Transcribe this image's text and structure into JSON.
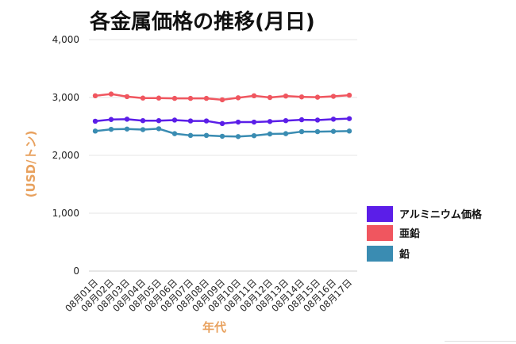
{
  "colors": {
    "aluminum": "#5b1ee8",
    "zinc": "#f0565f",
    "lead": "#3a8cb2",
    "axis_label": "#e8a15e"
  },
  "chart_data": {
    "type": "line",
    "title": "各金属価格の推移(月日)",
    "xlabel": "年代",
    "ylabel": "(USD/トン)",
    "ylim": [
      0,
      4000
    ],
    "yticks": [
      "0",
      "1,000",
      "2,000",
      "3,000",
      "4,000"
    ],
    "categories": [
      "08月01日",
      "08月02日",
      "08月03日",
      "08月04日",
      "08月05日",
      "08月06日",
      "08月07日",
      "08月08日",
      "08月09日",
      "08月10日",
      "08月11日",
      "08月12日",
      "08月13日",
      "08月14日",
      "08月15日",
      "08月16日",
      "08月17日"
    ],
    "legend_position": "right",
    "grid": true,
    "series": [
      {
        "name": "アルミニウム価格",
        "color": "#5b1ee8",
        "values": [
          2590,
          2620,
          2625,
          2600,
          2600,
          2610,
          2595,
          2595,
          2550,
          2575,
          2575,
          2585,
          2600,
          2615,
          2610,
          2625,
          2635
        ]
      },
      {
        "name": "亜鉛",
        "color": "#f0565f",
        "values": [
          3030,
          3060,
          3015,
          2990,
          2990,
          2985,
          2985,
          2985,
          2960,
          2995,
          3030,
          3000,
          3025,
          3010,
          3005,
          3020,
          3040
        ]
      },
      {
        "name": "鉛",
        "color": "#3a8cb2",
        "values": [
          2420,
          2450,
          2455,
          2445,
          2460,
          2375,
          2345,
          2345,
          2330,
          2325,
          2340,
          2370,
          2375,
          2410,
          2410,
          2415,
          2420
        ]
      }
    ]
  }
}
